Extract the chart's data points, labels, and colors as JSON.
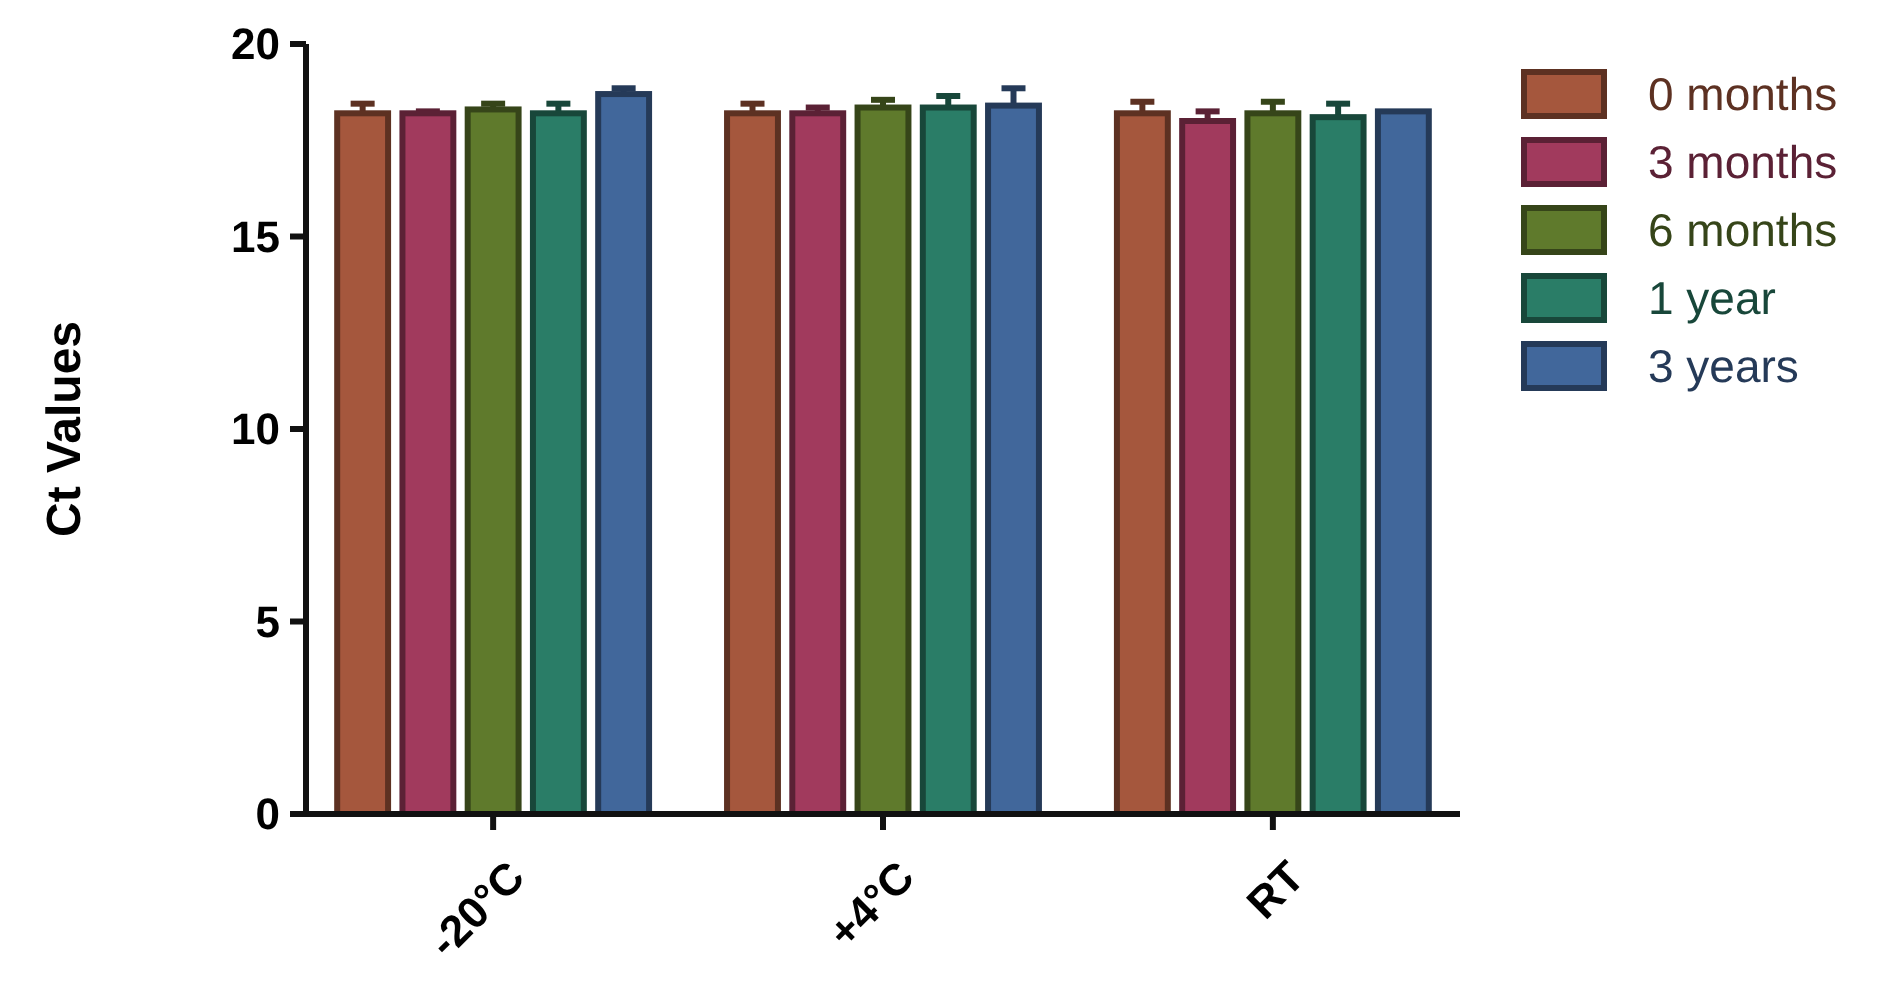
{
  "chart_data": {
    "type": "bar",
    "ylabel": "Ct  Values",
    "categories": [
      "-20°C",
      "+4°C",
      "RT"
    ],
    "ylim": [
      0,
      20
    ],
    "yticks": [
      0,
      5,
      10,
      15,
      20
    ],
    "grid": false,
    "legend": "right",
    "series": [
      {
        "name": "0 months",
        "color": "#a5573d",
        "values": [
          18.2,
          18.2,
          18.2
        ],
        "errors": [
          [
            18.2,
            18.45
          ],
          [
            18.2,
            18.45
          ],
          [
            18.2,
            18.5
          ]
        ]
      },
      {
        "name": "3 months",
        "color": "#a13a5d",
        "values": [
          18.2,
          18.2,
          18.0
        ],
        "errors": [
          [
            18.2,
            18.25
          ],
          [
            18.2,
            18.35
          ],
          [
            18.0,
            18.25
          ]
        ]
      },
      {
        "name": "6 months",
        "color": "#5f7a2c",
        "values": [
          18.3,
          18.35,
          18.2
        ],
        "errors": [
          [
            18.3,
            18.45
          ],
          [
            18.35,
            18.55
          ],
          [
            18.2,
            18.5
          ]
        ]
      },
      {
        "name": "1 year",
        "color": "#2a7d67",
        "values": [
          18.2,
          18.35,
          18.1
        ],
        "errors": [
          [
            18.2,
            18.45
          ],
          [
            18.35,
            18.65
          ],
          [
            18.1,
            18.45
          ]
        ]
      },
      {
        "name": "3 years",
        "color": "#41679b",
        "values": [
          18.7,
          18.4,
          18.25
        ],
        "errors": [
          [
            18.7,
            18.85
          ],
          [
            18.4,
            18.85
          ],
          null
        ]
      }
    ]
  }
}
